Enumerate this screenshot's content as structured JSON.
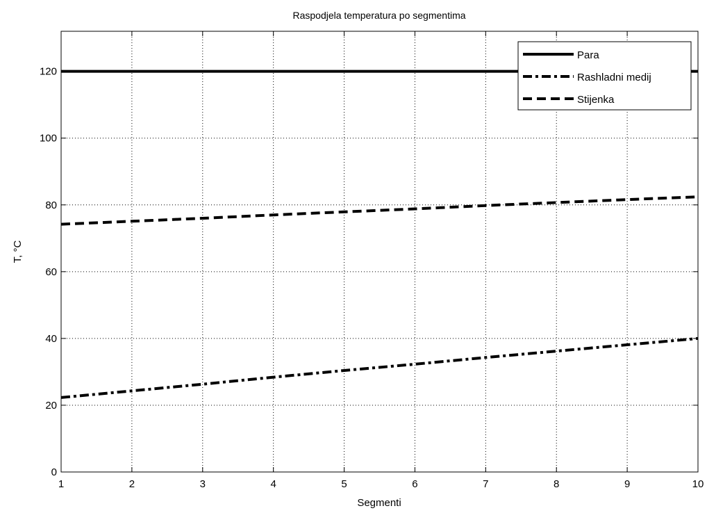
{
  "chart_data": {
    "type": "line",
    "title": "Raspodjela temperatura po segmentima",
    "xlabel": "Segmenti",
    "ylabel": "T, °C",
    "xlim": [
      1,
      10
    ],
    "ylim": [
      0,
      132
    ],
    "x_ticks": [
      1,
      2,
      3,
      4,
      5,
      6,
      7,
      8,
      9,
      10
    ],
    "y_ticks": [
      0,
      20,
      40,
      60,
      80,
      100,
      120
    ],
    "grid": true,
    "grid_style": "dotted",
    "legend_position": "top-right",
    "x": [
      1,
      2,
      3,
      4,
      5,
      6,
      7,
      8,
      9,
      10
    ],
    "series": [
      {
        "name": "Para",
        "style": "solid",
        "color": "#000000",
        "values": [
          120,
          120,
          120,
          120,
          120,
          120,
          120,
          120,
          120,
          120
        ]
      },
      {
        "name": "Rashladni medij",
        "style": "dashdot",
        "color": "#000000",
        "values": [
          22.3,
          24.3,
          26.3,
          28.4,
          30.4,
          32.3,
          34.3,
          36.2,
          38.1,
          40.0
        ]
      },
      {
        "name": "Stijenka",
        "style": "dashed",
        "color": "#000000",
        "values": [
          74.2,
          75.1,
          76.0,
          77.0,
          77.9,
          78.8,
          79.8,
          80.7,
          81.6,
          82.4
        ]
      }
    ]
  }
}
